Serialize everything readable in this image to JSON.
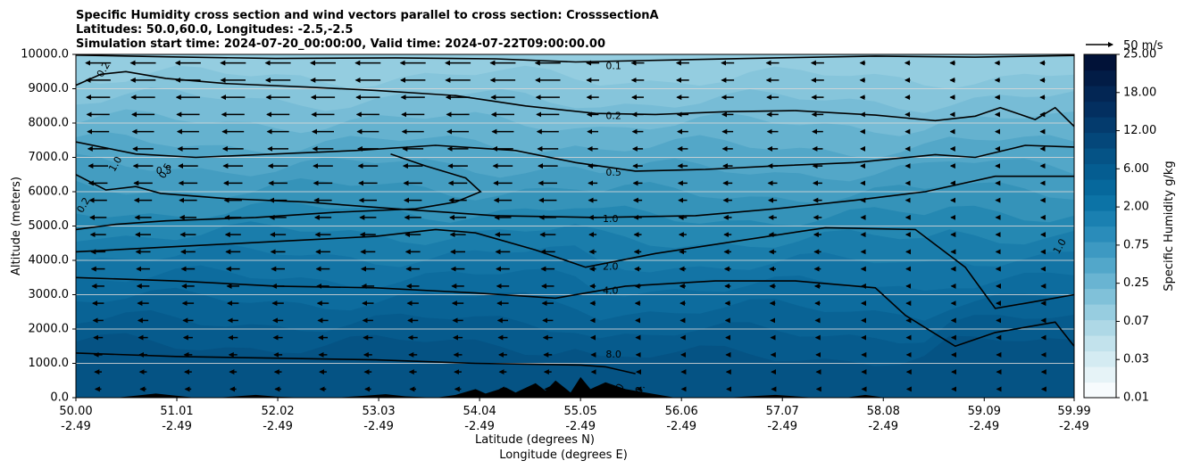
{
  "chart_data": {
    "type": "heatmap",
    "title_lines": [
      "Specific Humidity cross section and wind vectors parallel to cross section: CrosssectionA",
      "Latitudes: 50.0,60.0, Longitudes: -2.5,-2.5",
      "Simulation start time: 2024-07-20_00:00:00, Valid time: 2024-07-22T09:00:00.00"
    ],
    "ylabel": "Altitude (meters)",
    "xlabel_lines": [
      "Latitude (degrees N)",
      "Longitude (degrees E)"
    ],
    "ylim": [
      0,
      10000
    ],
    "xlim": [
      50.0,
      59.99
    ],
    "y_ticks": [
      0,
      1000,
      2000,
      3000,
      4000,
      5000,
      6000,
      7000,
      8000,
      9000,
      10000
    ],
    "y_tick_labels": [
      "0.0",
      "1000.0",
      "2000.0",
      "3000.0",
      "4000.0",
      "5000.0",
      "6000.0",
      "7000.0",
      "8000.0",
      "9000.0",
      "10000.0"
    ],
    "x_ticks": [
      50.0,
      51.01,
      52.02,
      53.03,
      54.04,
      55.05,
      56.06,
      57.07,
      58.08,
      59.09,
      59.99
    ],
    "x_tick_labels": [
      [
        "50.00",
        "-2.49"
      ],
      [
        "51.01",
        "-2.49"
      ],
      [
        "52.02",
        "-2.49"
      ],
      [
        "53.03",
        "-2.49"
      ],
      [
        "54.04",
        "-2.49"
      ],
      [
        "55.05",
        "-2.49"
      ],
      [
        "56.06",
        "-2.49"
      ],
      [
        "57.07",
        "-2.49"
      ],
      [
        "58.08",
        "-2.49"
      ],
      [
        "59.09",
        "-2.49"
      ],
      [
        "59.99",
        "-2.49"
      ]
    ],
    "grid": "horizontal",
    "colorbar": {
      "label": "Specific Humidity g/kg",
      "levels": [
        0.01,
        0.03,
        0.07,
        0.25,
        0.75,
        2.0,
        6.0,
        12.0,
        18.0,
        25.0
      ],
      "level_labels": [
        "0.01",
        "0.03",
        "0.07",
        "0.25",
        "0.75",
        "2.00",
        "6.00",
        "12.00",
        "18.00",
        "25.00"
      ],
      "colors": [
        "#f7fbfd",
        "#e6f3f7",
        "#d4ebf2",
        "#c2e2ec",
        "#aed8e6",
        "#97cde0",
        "#80c1d9",
        "#69b4d2",
        "#52a7ca",
        "#3d99c2",
        "#2a8cba",
        "#1a80b1",
        "#0c73a6",
        "#06689c",
        "#055d91",
        "#055386",
        "#04477a",
        "#043b6d",
        "#032f60",
        "#032654",
        "#021c46",
        "#011238"
      ]
    },
    "reference_vector": {
      "label": "50 m/s",
      "speed": 50
    },
    "contours": [
      {
        "label": "0.1",
        "label_at": [
          55.38,
          9650
        ],
        "points": [
          [
            50.0,
            9980
          ],
          [
            50.9,
            9930
          ],
          [
            52.0,
            9880
          ],
          [
            53.2,
            9900
          ],
          [
            54.2,
            9870
          ],
          [
            55.0,
            9780
          ],
          [
            56.0,
            9840
          ],
          [
            57.0,
            9900
          ],
          [
            58.0,
            9950
          ],
          [
            59.0,
            9920
          ],
          [
            59.99,
            9970
          ]
        ]
      },
      {
        "label": "0.2",
        "label_at": [
          55.38,
          8200
        ],
        "points": [
          [
            50.0,
            9100
          ],
          [
            50.25,
            9420
          ],
          [
            50.5,
            9500
          ],
          [
            50.9,
            9300
          ],
          [
            51.5,
            9150
          ],
          [
            52.3,
            9050
          ],
          [
            53.0,
            8950
          ],
          [
            53.8,
            8800
          ],
          [
            54.5,
            8500
          ],
          [
            55.2,
            8280
          ],
          [
            55.8,
            8250
          ],
          [
            56.5,
            8330
          ],
          [
            57.2,
            8360
          ],
          [
            58.0,
            8230
          ],
          [
            58.6,
            8070
          ],
          [
            59.0,
            8200
          ],
          [
            59.25,
            8450
          ],
          [
            59.6,
            8100
          ],
          [
            59.8,
            8450
          ],
          [
            59.99,
            7900
          ]
        ]
      },
      {
        "label": "0.5",
        "label_at": [
          55.38,
          6550
        ],
        "points": [
          [
            50.0,
            7450
          ],
          [
            50.6,
            7100
          ],
          [
            51.2,
            7000
          ],
          [
            52.0,
            7100
          ],
          [
            52.8,
            7200
          ],
          [
            53.6,
            7350
          ],
          [
            54.4,
            7200
          ],
          [
            55.0,
            6850
          ],
          [
            55.6,
            6600
          ],
          [
            56.3,
            6650
          ],
          [
            57.0,
            6750
          ],
          [
            57.8,
            6850
          ],
          [
            58.6,
            7080
          ],
          [
            59.0,
            7000
          ],
          [
            59.5,
            7350
          ],
          [
            59.99,
            7300
          ]
        ]
      },
      {
        "label": "0.5",
        "label_at": [
          50.88,
          6600
        ],
        "points": [
          [
            53.15,
            7100
          ],
          [
            53.5,
            6750
          ],
          [
            53.9,
            6400
          ],
          [
            54.05,
            6000
          ],
          [
            53.8,
            5700
          ],
          [
            53.4,
            5500
          ],
          [
            52.6,
            5400
          ],
          [
            51.8,
            5250
          ],
          [
            50.9,
            5150
          ],
          [
            50.4,
            5050
          ],
          [
            50.0,
            4900
          ]
        ]
      },
      {
        "label": "1.0",
        "label_at": [
          55.35,
          5200
        ],
        "points": [
          [
            50.0,
            6500
          ],
          [
            50.3,
            6050
          ],
          [
            50.6,
            6150
          ],
          [
            50.85,
            5950
          ],
          [
            51.5,
            5800
          ],
          [
            52.3,
            5700
          ],
          [
            53.2,
            5500
          ],
          [
            54.2,
            5300
          ],
          [
            55.2,
            5250
          ],
          [
            56.2,
            5300
          ],
          [
            57.0,
            5500
          ],
          [
            57.8,
            5750
          ],
          [
            58.5,
            6000
          ],
          [
            59.2,
            6450
          ],
          [
            59.99,
            6450
          ]
        ]
      },
      {
        "label": "2.0",
        "label_at": [
          55.35,
          3800
        ],
        "points": [
          [
            50.0,
            4250
          ],
          [
            51.0,
            4400
          ],
          [
            52.0,
            4550
          ],
          [
            53.0,
            4700
          ],
          [
            53.6,
            4900
          ],
          [
            54.0,
            4800
          ],
          [
            54.6,
            4300
          ],
          [
            55.1,
            3800
          ],
          [
            55.8,
            4200
          ],
          [
            56.7,
            4600
          ],
          [
            57.5,
            4950
          ],
          [
            58.4,
            4900
          ],
          [
            58.9,
            3800
          ],
          [
            59.0,
            3400
          ],
          [
            59.2,
            2600
          ],
          [
            59.6,
            2800
          ],
          [
            59.99,
            3000
          ]
        ]
      },
      {
        "label": "4.0",
        "label_at": [
          55.35,
          3100
        ],
        "points": [
          [
            50.0,
            3500
          ],
          [
            51.0,
            3400
          ],
          [
            52.0,
            3250
          ],
          [
            53.0,
            3200
          ],
          [
            54.0,
            3050
          ],
          [
            54.8,
            2900
          ],
          [
            55.5,
            3250
          ],
          [
            56.4,
            3400
          ],
          [
            57.2,
            3400
          ],
          [
            58.0,
            3200
          ],
          [
            58.3,
            2400
          ],
          [
            58.8,
            1500
          ],
          [
            59.2,
            1900
          ],
          [
            59.8,
            2200
          ],
          [
            59.99,
            1500
          ]
        ]
      },
      {
        "label": "8.0",
        "label_at": [
          55.38,
          1250
        ],
        "points": [
          [
            50.0,
            1300
          ],
          [
            51.0,
            1200
          ],
          [
            52.0,
            1150
          ],
          [
            53.0,
            1100
          ],
          [
            54.0,
            1000
          ],
          [
            55.05,
            950
          ],
          [
            55.3,
            900
          ],
          [
            55.6,
            700
          ]
        ]
      }
    ],
    "extra_contour_labels": [
      {
        "label": "0.2",
        "at": [
          50.28,
          9550
        ]
      },
      {
        "label": "1.0",
        "at": [
          50.4,
          6800
        ]
      },
      {
        "label": "0.5",
        "at": [
          50.9,
          6600
        ]
      },
      {
        "label": "0.2",
        "at": [
          50.08,
          5600
        ]
      },
      {
        "label": "1.0",
        "at": [
          59.85,
          4400
        ]
      },
      {
        "label": "0",
        "at": [
          55.45,
          300
        ]
      },
      {
        "label": "0.",
        "at": [
          55.65,
          250
        ]
      }
    ],
    "terrain_profile": [
      [
        50.0,
        0
      ],
      [
        50.4,
        0
      ],
      [
        50.6,
        60
      ],
      [
        50.8,
        120
      ],
      [
        51.0,
        60
      ],
      [
        51.2,
        0
      ],
      [
        51.4,
        0
      ],
      [
        51.6,
        40
      ],
      [
        51.8,
        80
      ],
      [
        52.0,
        30
      ],
      [
        52.3,
        0
      ],
      [
        52.6,
        0
      ],
      [
        52.9,
        60
      ],
      [
        53.1,
        100
      ],
      [
        53.3,
        40
      ],
      [
        53.6,
        0
      ],
      [
        53.8,
        80
      ],
      [
        54.0,
        250
      ],
      [
        54.1,
        120
      ],
      [
        54.3,
        300
      ],
      [
        54.4,
        150
      ],
      [
        54.6,
        420
      ],
      [
        54.7,
        200
      ],
      [
        54.8,
        500
      ],
      [
        54.95,
        150
      ],
      [
        55.05,
        600
      ],
      [
        55.15,
        250
      ],
      [
        55.3,
        450
      ],
      [
        55.5,
        250
      ],
      [
        55.7,
        150
      ],
      [
        56.0,
        0
      ],
      [
        56.5,
        0
      ],
      [
        57.0,
        80
      ],
      [
        57.4,
        0
      ],
      [
        57.7,
        0
      ],
      [
        57.9,
        80
      ],
      [
        58.1,
        0
      ],
      [
        59.99,
        0
      ]
    ]
  }
}
